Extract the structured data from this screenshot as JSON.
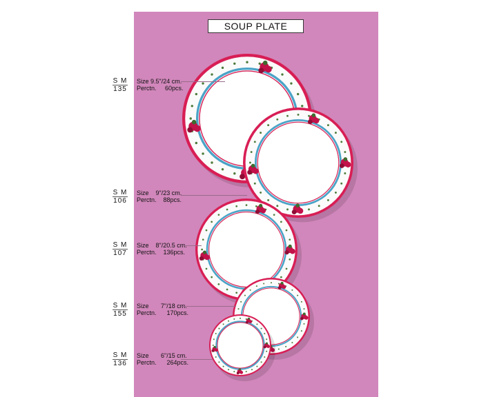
{
  "title": "SOUP PLATE",
  "colors": {
    "background": "#d187bb",
    "rim": "#d81e55",
    "band": "#4aa3c7",
    "rose": "#c2124a"
  },
  "items": [
    {
      "code_top": "S M",
      "code_bottom": "135",
      "size": "Size 9.5\"/24 cm.",
      "perctn": "Perctn.     60pcs."
    },
    {
      "code_top": "S M",
      "code_bottom": "106",
      "size": "Size    9\"/23 cm.",
      "perctn": "Perctn.    88pcs."
    },
    {
      "code_top": "S M",
      "code_bottom": "107",
      "size": "Size    8\"/20.5 cm.",
      "perctn": "Perctn.    136pcs."
    },
    {
      "code_top": "S M",
      "code_bottom": "155",
      "size": "Size       7\"/18 cm.",
      "perctn": "Perctn.      170pcs."
    },
    {
      "code_top": "S M",
      "code_bottom": "136",
      "size": "Size       6\"/15 cm.",
      "perctn": "Perctn.      264pcs."
    }
  ]
}
